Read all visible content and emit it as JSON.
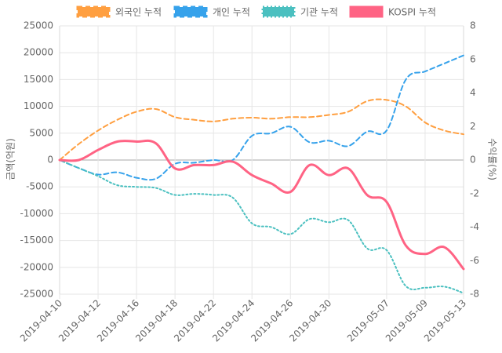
{
  "chart_data": {
    "type": "line",
    "legend_position": "top",
    "x_ticks": [
      "2019-04-10",
      "2019-04-12",
      "2019-04-16",
      "2019-04-18",
      "2019-04-22",
      "2019-04-24",
      "2019-04-26",
      "2019-04-30",
      "2019-05-07",
      "2019-05-09",
      "2019-05-13"
    ],
    "left_axis": {
      "label": "금액(억원)",
      "min": -25000,
      "max": 25000,
      "step": 5000,
      "ticks": [
        "25000",
        "20000",
        "15000",
        "10000",
        "5000",
        "0",
        "-5000",
        "-10000",
        "-15000",
        "-20000",
        "-25000"
      ]
    },
    "right_axis": {
      "label": "수익률(%)",
      "min": -8,
      "max": 8,
      "step": 2,
      "ticks": [
        "8",
        "6",
        "4",
        "2",
        "0",
        "-2",
        "-4",
        "-6",
        "-8"
      ]
    },
    "x": [
      "2019-04-10",
      "2019-04-11",
      "2019-04-12",
      "2019-04-15",
      "2019-04-16",
      "2019-04-17",
      "2019-04-18",
      "2019-04-19",
      "2019-04-22",
      "2019-04-23",
      "2019-04-24",
      "2019-04-25",
      "2019-04-26",
      "2019-04-29",
      "2019-04-30",
      "2019-05-02",
      "2019-05-03",
      "2019-05-07",
      "2019-05-08",
      "2019-05-09",
      "2019-05-10",
      "2019-05-13"
    ],
    "series": [
      {
        "name": "외국인 누적",
        "axis": "left",
        "color": "#ff9f40",
        "dash": "dashed",
        "values": [
          0,
          3000,
          5500,
          7500,
          9000,
          9500,
          8000,
          7500,
          7200,
          7700,
          7900,
          7700,
          8000,
          8000,
          8400,
          9000,
          11000,
          11200,
          10000,
          7000,
          5500,
          4800
        ]
      },
      {
        "name": "개인 누적",
        "axis": "left",
        "color": "#36a2eb",
        "dash": "dashed",
        "values": [
          0,
          -1500,
          -2700,
          -2300,
          -3300,
          -3500,
          -700,
          -500,
          0,
          0,
          4500,
          5000,
          6200,
          3300,
          3600,
          2600,
          5300,
          5500,
          15000,
          16500,
          18000,
          19500
        ]
      },
      {
        "name": "기관 누적",
        "axis": "left",
        "color": "#4bc0c0",
        "dash": "dotted",
        "values": [
          0,
          -1500,
          -3000,
          -4700,
          -5000,
          -5200,
          -6500,
          -6300,
          -6500,
          -7000,
          -11800,
          -12500,
          -13800,
          -11000,
          -11600,
          -11200,
          -16500,
          -16800,
          -23500,
          -23800,
          -23600,
          -24800
        ]
      },
      {
        "name": "KOSPI 누적",
        "axis": "right",
        "color": "#ff6384",
        "dash": "solid",
        "values": [
          0,
          0,
          0.6,
          1.1,
          1.1,
          1.0,
          -0.5,
          -0.3,
          -0.3,
          -0.1,
          -0.9,
          -1.4,
          -1.9,
          -0.3,
          -0.9,
          -0.5,
          -2.1,
          -2.5,
          -5.1,
          -5.6,
          -5.2,
          -6.5
        ]
      }
    ]
  }
}
